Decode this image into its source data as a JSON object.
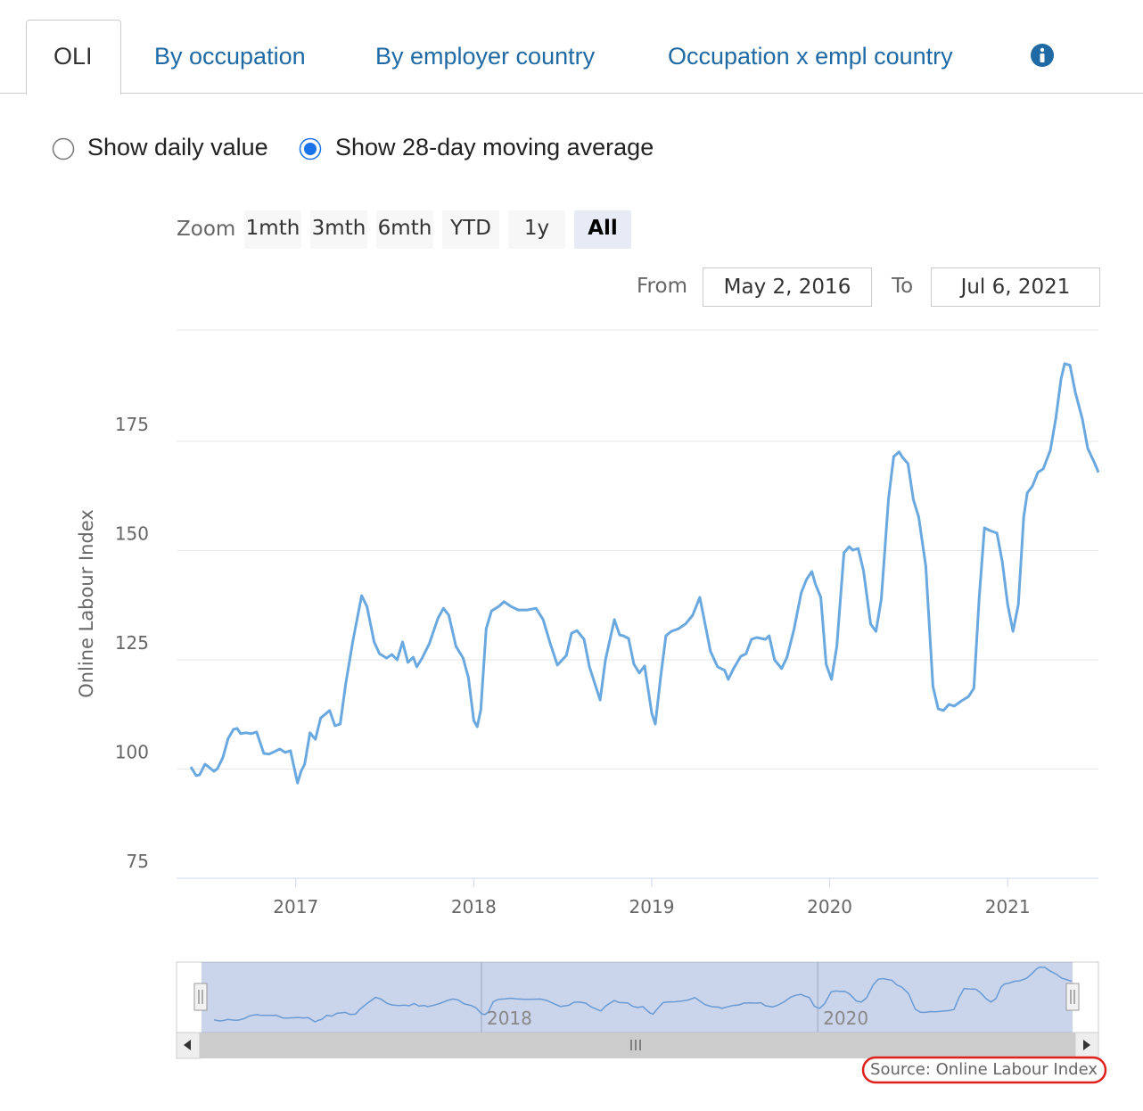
{
  "tabs": [
    "OLI",
    "By occupation",
    "By employer country",
    "Occupation x empl country"
  ],
  "radio_options": [
    "Show daily value",
    "Show 28-day moving average"
  ],
  "zoom_label": "Zoom",
  "zoom_buttons": [
    "1mth",
    "3mth",
    "6mth",
    "YTD",
    "1y",
    "All"
  ],
  "from_label": "From",
  "from_value": "May 2, 2016",
  "to_label": "To",
  "to_value": "Jul 6, 2021",
  "chart_data": {
    "type": "line",
    "y_label": "Online Labour Index",
    "color": "#6aa8e0",
    "x": [
      2016.41,
      2016.44,
      2016.46,
      2016.49,
      2016.51,
      2016.54,
      2016.56,
      2016.59,
      2016.62,
      2016.65,
      2016.67,
      2016.69,
      2016.72,
      2016.75,
      2016.78,
      2016.82,
      2016.85,
      2016.91,
      2016.94,
      2016.97,
      2017.01,
      2017.03,
      2017.05,
      2017.08,
      2017.11,
      2017.14,
      2017.19,
      2017.22,
      2017.25,
      2017.28,
      2017.32,
      2017.37,
      2017.4,
      2017.44,
      2017.47,
      2017.51,
      2017.54,
      2017.57,
      2017.6,
      2017.63,
      2017.66,
      2017.68,
      2017.71,
      2017.75,
      2017.8,
      2017.83,
      2017.86,
      2017.9,
      2017.94,
      2017.97,
      2018.0,
      2018.02,
      2018.04,
      2018.07,
      2018.1,
      2018.14,
      2018.17,
      2018.21,
      2018.25,
      2018.3,
      2018.35,
      2018.39,
      2018.43,
      2018.47,
      2018.52,
      2018.55,
      2018.58,
      2018.62,
      2018.65,
      2018.71,
      2018.74,
      2018.79,
      2018.82,
      2018.84,
      2018.87,
      2018.9,
      2018.93,
      2018.96,
      2019.0,
      2019.02,
      2019.05,
      2019.08,
      2019.11,
      2019.15,
      2019.19,
      2019.23,
      2019.27,
      2019.29,
      2019.33,
      2019.37,
      2019.41,
      2019.43,
      2019.46,
      2019.5,
      2019.53,
      2019.56,
      2019.59,
      2019.64,
      2019.66,
      2019.69,
      2019.73,
      2019.76,
      2019.8,
      2019.84,
      2019.87,
      2019.9,
      2019.92,
      2019.95,
      2019.98,
      2020.01,
      2020.04,
      2020.08,
      2020.11,
      2020.13,
      2020.16,
      2020.19,
      2020.23,
      2020.26,
      2020.29,
      2020.33,
      2020.36,
      2020.39,
      2020.41,
      2020.44,
      2020.47,
      2020.5,
      2020.54,
      2020.58,
      2020.61,
      2020.64,
      2020.67,
      2020.7,
      2020.74,
      2020.78,
      2020.81,
      2020.84,
      2020.87,
      2020.9,
      2020.94,
      2020.97,
      2021.0,
      2021.03,
      2021.06,
      2021.09,
      2021.11,
      2021.14,
      2021.17,
      2021.2,
      2021.24,
      2021.27,
      2021.3,
      2021.32,
      2021.35,
      2021.38,
      2021.42,
      2021.45,
      2021.49,
      2021.51
    ],
    "values": [
      100.5,
      98.5,
      98.7,
      101.1,
      100.5,
      99.5,
      100.1,
      102.6,
      107.0,
      109.1,
      109.3,
      108.1,
      108.3,
      108.1,
      108.5,
      103.6,
      103.4,
      104.6,
      103.8,
      104.2,
      96.8,
      99.5,
      101.1,
      108.3,
      106.8,
      111.7,
      113.4,
      109.9,
      110.3,
      119.3,
      129.1,
      139.7,
      137.2,
      129.1,
      126.4,
      125.4,
      126.2,
      125.0,
      129.1,
      124.4,
      125.6,
      123.4,
      125.4,
      128.7,
      134.6,
      136.8,
      135.2,
      128.1,
      125.4,
      120.9,
      111.1,
      109.7,
      113.6,
      132.1,
      136.2,
      137.2,
      138.3,
      137.2,
      136.4,
      136.4,
      136.8,
      134.2,
      128.7,
      123.8,
      126.0,
      131.1,
      131.7,
      129.7,
      123.4,
      115.8,
      125.0,
      134.2,
      130.7,
      130.5,
      129.9,
      124.0,
      122.0,
      123.6,
      112.8,
      110.3,
      120.9,
      130.5,
      131.5,
      132.1,
      133.2,
      135.2,
      139.3,
      135.2,
      127.0,
      123.4,
      122.6,
      120.5,
      123.0,
      125.8,
      126.4,
      129.7,
      130.1,
      129.7,
      130.5,
      125.0,
      123.0,
      125.6,
      132.1,
      140.3,
      143.4,
      145.2,
      142.3,
      139.3,
      124.0,
      120.5,
      128.1,
      149.5,
      150.9,
      150.1,
      150.5,
      145.4,
      133.2,
      131.5,
      138.9,
      161.7,
      171.5,
      172.6,
      171.3,
      169.9,
      161.7,
      157.7,
      146.4,
      118.9,
      113.8,
      113.4,
      114.8,
      114.4,
      115.6,
      116.6,
      118.5,
      139.3,
      155.2,
      154.6,
      154.0,
      147.4,
      137.7,
      131.5,
      137.7,
      157.7,
      163.2,
      164.8,
      167.9,
      168.7,
      173.0,
      180.1,
      189.3,
      192.8,
      192.4,
      186.2,
      180.1,
      173.4,
      169.9,
      167.9
    ],
    "xlim": [
      2016.33,
      2021.51
    ],
    "ylim": [
      75,
      200
    ],
    "xticks": [
      2017,
      2018,
      2019,
      2020,
      2021
    ],
    "yticks": [
      75,
      100,
      125,
      150,
      175
    ],
    "grid": true,
    "navigator": {
      "xticks": [
        2018,
        2020
      ]
    }
  },
  "source": "Source: Online Labour Index"
}
